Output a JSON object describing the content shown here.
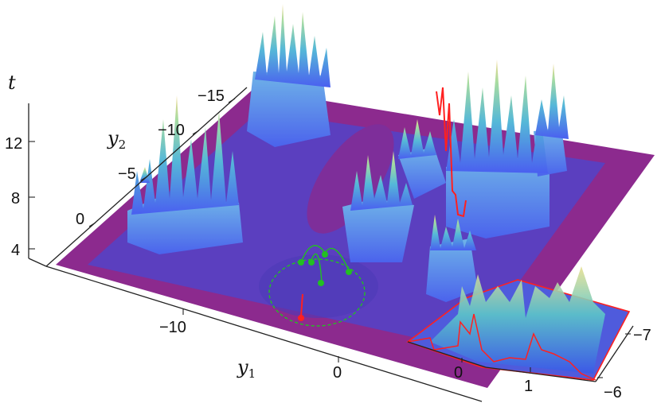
{
  "figure": {
    "axes": {
      "t": {
        "label": "t",
        "ticks": [
          "12",
          "8",
          "4"
        ]
      },
      "y1": {
        "label": "y",
        "subscript": "1",
        "ticks": [
          "−10",
          "0"
        ]
      },
      "y2": {
        "label": "y",
        "subscript": "2",
        "ticks": [
          "−15",
          "−10",
          "−5",
          "0"
        ]
      }
    },
    "inset": {
      "x_ticks": [
        "0",
        "1"
      ],
      "y_ticks": [
        "−7",
        "−6"
      ]
    },
    "colors": {
      "floor_outer": "#8c2a8e",
      "floor_inner": "#5a3fc0",
      "peaks_low": "#4a6cf0",
      "peaks_mid": "#55c8c8",
      "peaks_high": "#e6e08a",
      "highlight": "#ff2020",
      "trajectory": "#22c022"
    }
  }
}
